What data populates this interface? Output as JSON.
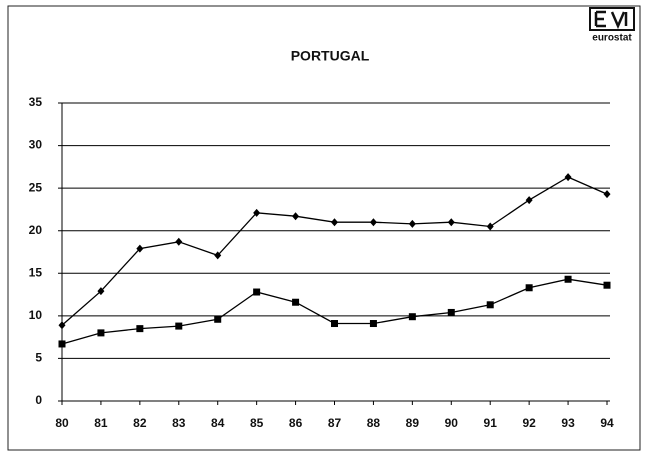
{
  "chart_data": {
    "type": "line",
    "title": "PORTUGAL",
    "logo": "eurostat",
    "categories": [
      "80",
      "81",
      "82",
      "83",
      "84",
      "85",
      "86",
      "87",
      "88",
      "89",
      "90",
      "91",
      "92",
      "93",
      "94"
    ],
    "series": [
      {
        "color": "#000000",
        "marker": "diamond",
        "values": [
          8.9,
          12.9,
          17.9,
          18.7,
          17.1,
          22.1,
          21.7,
          21.0,
          21.0,
          20.8,
          21.0,
          20.5,
          23.6,
          26.3,
          24.3
        ]
      },
      {
        "color": "#000000",
        "marker": "square",
        "values": [
          6.7,
          8.0,
          8.5,
          8.8,
          9.6,
          12.8,
          11.6,
          9.1,
          9.1,
          9.9,
          10.4,
          11.3,
          13.3,
          14.3,
          13.6
        ]
      }
    ],
    "ylim": [
      0,
      35
    ],
    "yticks": [
      0,
      5,
      10,
      15,
      20,
      25,
      30,
      35
    ],
    "grid": true
  }
}
